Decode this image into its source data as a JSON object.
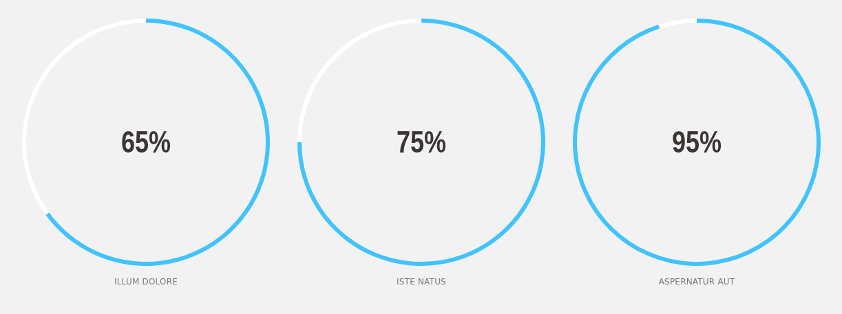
{
  "chart_data": [
    {
      "type": "donut",
      "xlabel": "ILLUM DOLORE",
      "categories": [
        null,
        null
      ],
      "values": [
        65,
        35
      ],
      "colors": [
        "#42c3fb",
        "#ffffff"
      ],
      "value_labels": [
        "65%",
        null
      ]
    },
    {
      "type": "donut",
      "xlabel": "ISTE NATUS",
      "categories": [
        null,
        null
      ],
      "values": [
        75,
        25
      ],
      "colors": [
        "#42c3fb",
        "#ffffff"
      ],
      "value_labels": [
        "75%",
        null
      ]
    },
    {
      "type": "donut",
      "xlabel": "ASPERNATUR AUT",
      "categories": [
        null,
        null
      ],
      "values": [
        95,
        5
      ],
      "colors": [
        "#42c3fb",
        "#ffffff"
      ],
      "value_labels": [
        "95%",
        null
      ]
    }
  ]
}
